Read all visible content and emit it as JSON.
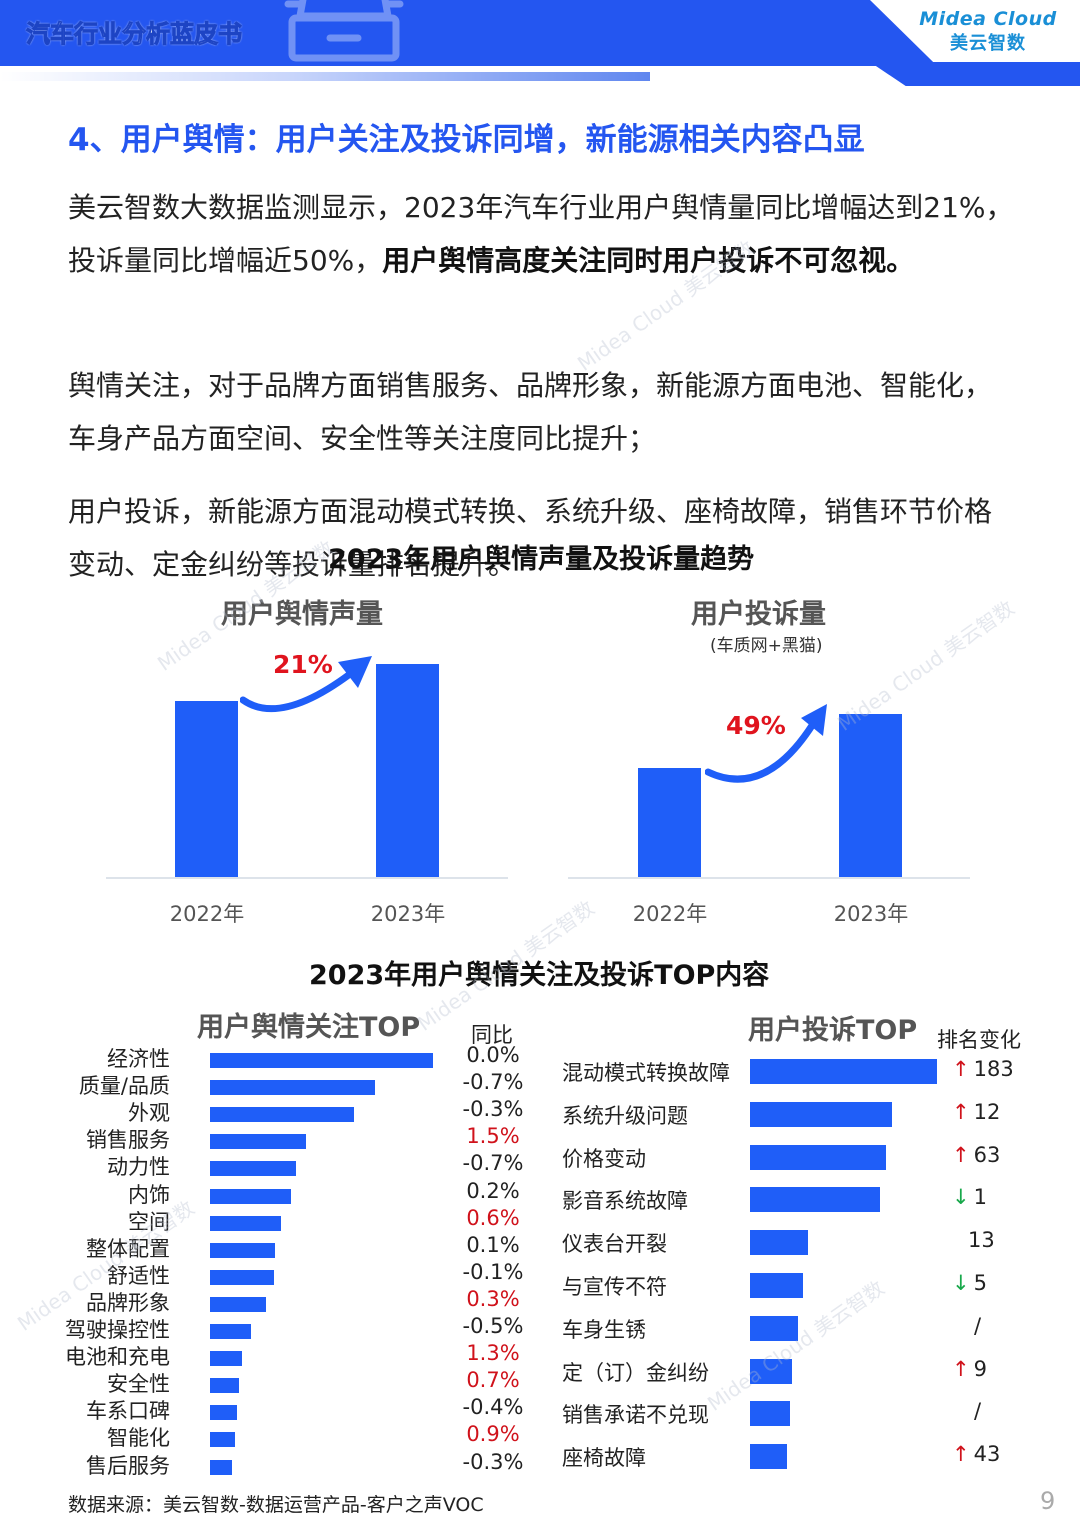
{
  "header": {
    "title": "汽车行业分析蓝皮书",
    "logo_en": "Midea Cloud",
    "logo_cn": "美云智数",
    "icon": "car-icon",
    "colors": {
      "brand_blue": "#2456f0",
      "logo_blue": "#1a8fd6"
    }
  },
  "section": {
    "title": "4、用户舆情：用户关注及投诉同增，新能源相关内容凸显"
  },
  "paragraphs": {
    "p1_normal": "美云智数大数据监测显示，2023年汽车行业用户舆情量同比增幅达到21%，投诉量同比增幅近50%，",
    "p1_bold": "用户舆情高度关注同时用户投诉不可忽视。",
    "p2": "舆情关注，对于品牌方面销售服务、品牌形象，新能源方面电池、智能化，车身产品方面空间、安全性等关注度同比提升；",
    "p3": "用户投诉，新能源方面混动模式转换、系统升级、座椅故障，销售环节价格变动、定金纠纷等投诉量排名提升。"
  },
  "trend_chart": {
    "title": "2023年用户舆情声量及投诉量趋势",
    "left": {
      "title": "用户舆情声量",
      "growth": "21%",
      "x_labels": [
        "2022年",
        "2023年"
      ]
    },
    "right": {
      "title": "用户投诉量",
      "note": "(车质网+黑猫)",
      "growth": "49%",
      "x_labels": [
        "2022年",
        "2023年"
      ]
    }
  },
  "top_chart": {
    "title": "2023年用户舆情关注及投诉TOP内容",
    "left": {
      "title": "用户舆情关注TOP",
      "col_head": "同比"
    },
    "right": {
      "title": "用户投诉TOP",
      "col_head": "排名变化"
    }
  },
  "chart_data": [
    {
      "type": "bar",
      "title": "用户舆情声量",
      "categories": [
        "2022年",
        "2023年"
      ],
      "values": [
        100,
        121
      ],
      "annotation": "21%",
      "note": "Relative index; 2023 is 21% above 2022",
      "grid": false
    },
    {
      "type": "bar",
      "title": "用户投诉量",
      "subtitle": "(车质网+黑猫)",
      "categories": [
        "2022年",
        "2023年"
      ],
      "values": [
        100,
        149
      ],
      "annotation": "49%",
      "note": "Relative index; 2023 is 49% above 2022",
      "grid": false
    },
    {
      "type": "bar",
      "orientation": "horizontal",
      "title": "用户舆情关注TOP",
      "categories": [
        "经济性",
        "质量/品质",
        "外观",
        "销售服务",
        "动力性",
        "内饰",
        "空间",
        "整体配置",
        "舒适性",
        "品牌形象",
        "驾驶操控性",
        "电池和充电",
        "安全性",
        "车系口碑",
        "智能化",
        "售后服务"
      ],
      "values": [
        223,
        165,
        144,
        96,
        86,
        81,
        71,
        65,
        64,
        56,
        41,
        32,
        29,
        27,
        25,
        22
      ],
      "value_note": "relative bar lengths (px), no axis shown",
      "yoy_label": "同比",
      "yoy": [
        "0.0%",
        "-0.7%",
        "-0.3%",
        "1.5%",
        "-0.7%",
        "0.2%",
        "0.6%",
        "0.1%",
        "-0.1%",
        "0.3%",
        "-0.5%",
        "1.3%",
        "0.7%",
        "-0.4%",
        "0.9%",
        "-0.3%"
      ],
      "yoy_highlight": [
        false,
        false,
        false,
        true,
        false,
        false,
        true,
        false,
        false,
        true,
        false,
        true,
        true,
        false,
        true,
        false
      ]
    },
    {
      "type": "bar",
      "orientation": "horizontal",
      "title": "用户投诉TOP",
      "categories": [
        "混动模式转换故障",
        "系统升级问题",
        "价格变动",
        "影音系统故障",
        "仪表台开裂",
        "与宣传不符",
        "车身生锈",
        "定（订）金纠纷",
        "销售承诺不兑现",
        "座椅故障"
      ],
      "values": [
        187,
        142,
        136,
        130,
        58,
        53,
        48,
        42,
        40,
        37
      ],
      "value_note": "relative bar lengths (px), no axis shown",
      "rank_change_label": "排名变化",
      "rank_change": [
        {
          "dir": "up",
          "value": "183"
        },
        {
          "dir": "up",
          "value": "12"
        },
        {
          "dir": "up",
          "value": "63"
        },
        {
          "dir": "down",
          "value": "1"
        },
        {
          "dir": "none",
          "value": "13"
        },
        {
          "dir": "down",
          "value": "5"
        },
        {
          "dir": "none",
          "value": "/"
        },
        {
          "dir": "up",
          "value": "9"
        },
        {
          "dir": "none",
          "value": "/"
        },
        {
          "dir": "up",
          "value": "43"
        }
      ]
    }
  ],
  "footer": {
    "source": "数据来源：美云智数-数据运营产品-客户之声VOC",
    "page": "9"
  },
  "watermark": {
    "en": "Midea Cloud",
    "cn": "美云智数"
  },
  "colors": {
    "bar": "#1f5ef8",
    "increase_red": "#d0121b",
    "decrease_green": "#18a84b",
    "growth_label_red": "#e0141e"
  }
}
